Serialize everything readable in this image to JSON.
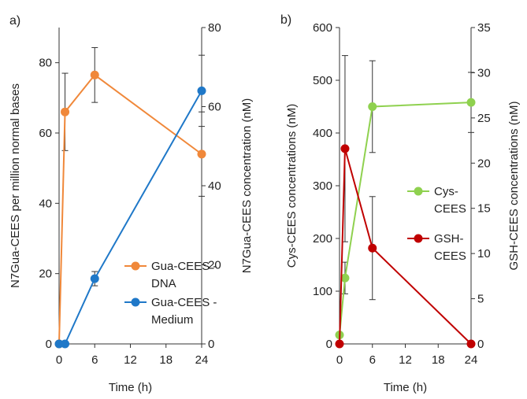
{
  "chart_data": [
    {
      "panel_label": "a)",
      "type": "line",
      "xlabel": "Time (h)",
      "xlim": [
        0,
        24
      ],
      "xticks": [
        "0",
        "6",
        "12",
        "18",
        "24"
      ],
      "ylabel": "N7Gua-CEES per million normal bases",
      "ylim": [
        0,
        90
      ],
      "yticks": [
        "0",
        "20",
        "40",
        "60",
        "80"
      ],
      "ylabel2": "N7Gua-CEES concentration (nM)",
      "ylim2": [
        0,
        80
      ],
      "yticks2": [
        "0",
        "20",
        "40",
        "60",
        "80"
      ],
      "legend_position": "bottom-right",
      "series": [
        {
          "name": "Gua-CEES - DNA",
          "legend_lines": [
            "Gua-CEES -",
            "DNA"
          ],
          "color": "#f0883a",
          "axis": "left",
          "x": [
            0,
            1,
            6,
            24
          ],
          "y": [
            0,
            66,
            76.5,
            54
          ],
          "err": [
            0,
            11,
            7.8,
            12
          ]
        },
        {
          "name": "Gua-CEES - Medium",
          "legend_lines": [
            "Gua-CEES -",
            "Medium"
          ],
          "color": "#1f78c8",
          "axis": "right",
          "x": [
            0,
            1,
            6,
            24
          ],
          "y": [
            0,
            0,
            16.5,
            64
          ],
          "err": [
            0,
            0,
            1.8,
            9
          ]
        }
      ]
    },
    {
      "panel_label": "b)",
      "type": "line",
      "xlabel": "Time (h)",
      "xlim": [
        0,
        24
      ],
      "xticks": [
        "0",
        "6",
        "12",
        "18",
        "24"
      ],
      "ylabel": "Cys-CEES concentrations (nM)",
      "ylim": [
        0,
        600
      ],
      "yticks": [
        "0",
        "100",
        "200",
        "300",
        "400",
        "500",
        "600"
      ],
      "ylabel2": "GSH-CEES concentrations (nM)",
      "ylim2": [
        0,
        35
      ],
      "yticks2": [
        "0",
        "5",
        "10",
        "15",
        "20",
        "25",
        "30",
        "35"
      ],
      "legend_position": "center-right",
      "series": [
        {
          "name": "Cys-CEES",
          "legend_lines": [
            "Cys-",
            "CEES"
          ],
          "color": "#8fd14f",
          "axis": "left",
          "x": [
            0,
            1,
            6,
            24
          ],
          "y": [
            17,
            125,
            450,
            458
          ],
          "err": [
            0,
            30,
            87,
            57
          ]
        },
        {
          "name": "GSH-CEES",
          "legend_lines": [
            "GSH-",
            "CEES"
          ],
          "color": "#c00000",
          "axis": "right",
          "x": [
            0,
            1,
            6,
            24
          ],
          "y": [
            0,
            21.6,
            10.6,
            0
          ],
          "err": [
            0,
            10.3,
            5.7,
            0
          ]
        }
      ]
    }
  ]
}
